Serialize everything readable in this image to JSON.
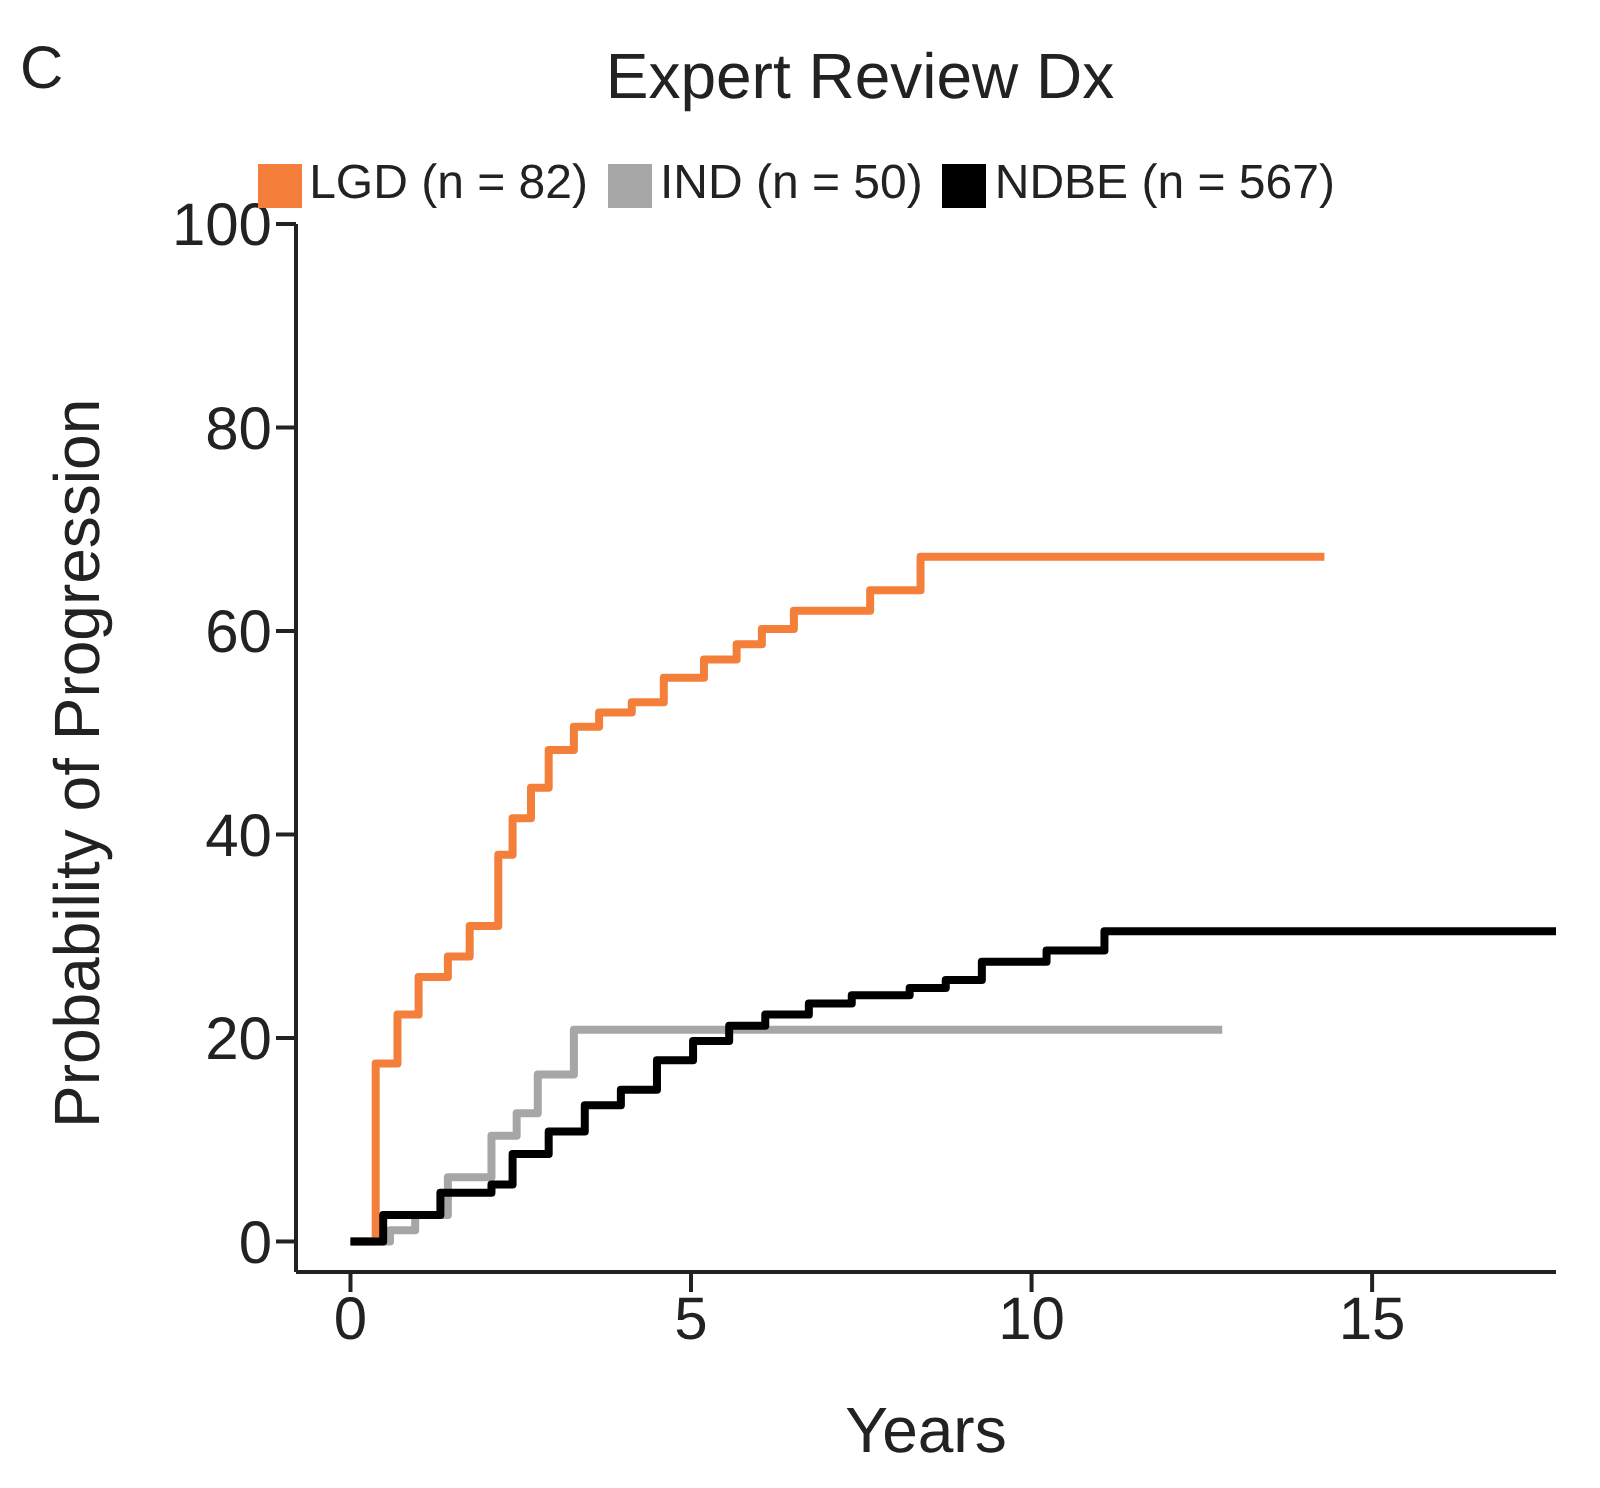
{
  "chart_data": {
    "type": "step",
    "title": "Expert Review Dx",
    "xlabel": "Years",
    "ylabel": "Probability of Progression",
    "annotations": [
      "C"
    ],
    "xlim": [
      -0.8,
      17.7
    ],
    "xticks": [
      0,
      5,
      10,
      15
    ],
    "ylim": [
      -3,
      100
    ],
    "yticks": [
      0,
      20,
      40,
      60,
      80,
      100
    ],
    "grid": false,
    "legend": "top",
    "marker": "none",
    "line_style": "solid",
    "series": [
      {
        "name": "LGD (n = 82)",
        "color": "#f47f3a",
        "x": [
          0,
          0.37,
          0.69,
          1.0,
          1.43,
          1.75,
          2.17,
          2.38,
          2.65,
          2.91,
          3.28,
          3.65,
          4.13,
          4.6,
          5.19,
          5.67,
          6.04,
          6.51,
          7.63,
          8.37,
          14.3
        ],
        "values": [
          0,
          17.5,
          22.3,
          26,
          28,
          31,
          38,
          41.6,
          44.6,
          48.3,
          50.6,
          52,
          53,
          55.4,
          57.2,
          58.7,
          60.2,
          62,
          64,
          67.3,
          67.3
        ]
      },
      {
        "name": "IND (n = 50)",
        "color": "#a6a6a6",
        "x": [
          0,
          0.58,
          0.95,
          1.43,
          2.07,
          2.44,
          2.75,
          3.28,
          12.8
        ],
        "values": [
          0,
          1.1,
          2.6,
          6.3,
          10.4,
          12.6,
          16.4,
          20.8,
          20.8
        ]
      },
      {
        "name": "NDBE (n = 567)",
        "color": "#000000",
        "x": [
          0,
          0.48,
          1.32,
          2.07,
          2.38,
          2.91,
          3.44,
          3.97,
          4.5,
          5.03,
          5.56,
          6.09,
          6.73,
          7.36,
          8.21,
          8.74,
          9.27,
          10.22,
          11.07,
          17.7
        ],
        "values": [
          0,
          2.6,
          4.8,
          5.6,
          8.6,
          10.8,
          13.4,
          14.9,
          17.8,
          19.7,
          21.2,
          22.3,
          23.4,
          24.2,
          24.9,
          25.7,
          27.5,
          28.6,
          30.5,
          30.5
        ]
      }
    ]
  }
}
